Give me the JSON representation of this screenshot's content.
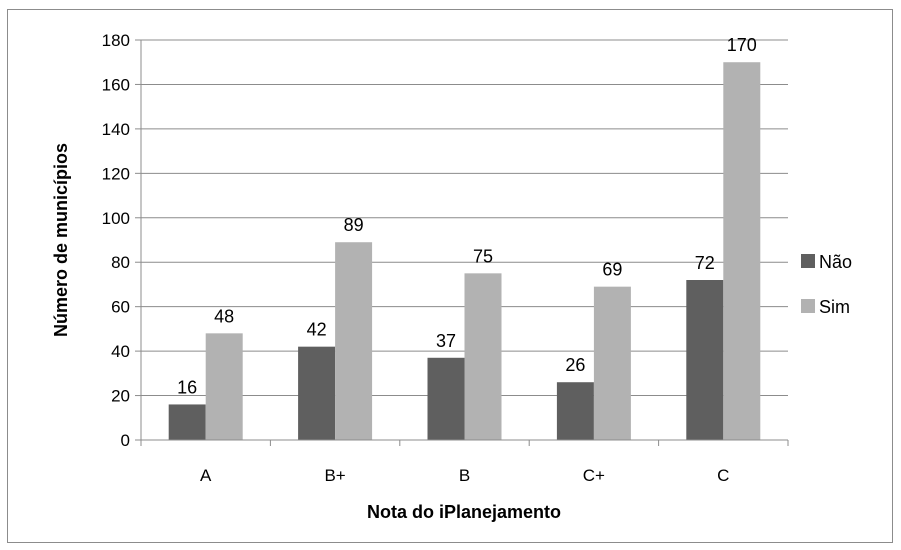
{
  "chart_data": {
    "type": "bar",
    "categories": [
      "A",
      "B+",
      "B",
      "C+",
      "C"
    ],
    "series": [
      {
        "name": "Não",
        "values": [
          16,
          42,
          37,
          26,
          72
        ],
        "color": "#5f5f5f"
      },
      {
        "name": "Sim",
        "values": [
          48,
          89,
          75,
          69,
          170
        ],
        "color": "#b2b2b2"
      }
    ],
    "xlabel": "Nota do iPlanejamento",
    "ylabel": "Número de municípios",
    "ylim": [
      0,
      180
    ],
    "yticks": [
      0,
      20,
      40,
      60,
      80,
      100,
      120,
      140,
      160,
      180
    ],
    "grid": true,
    "legend_position": "right"
  }
}
